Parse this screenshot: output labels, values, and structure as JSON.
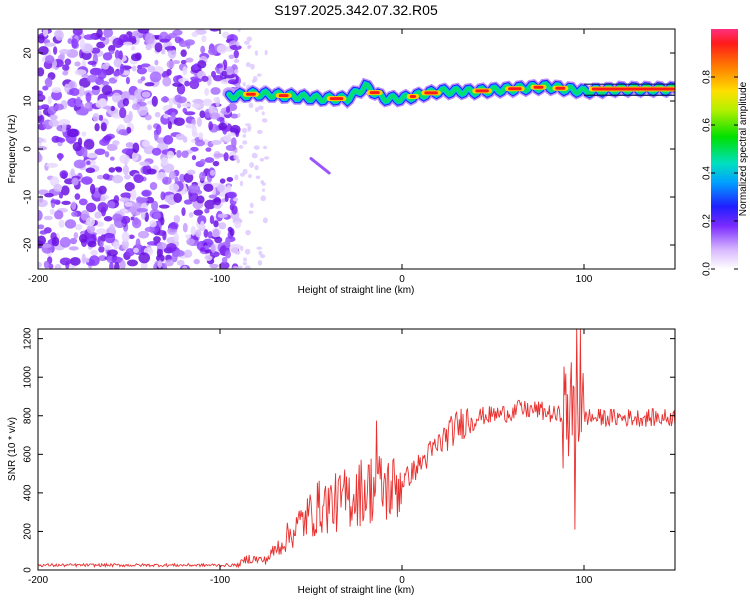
{
  "title": "S197.2025.342.07.32.R05",
  "chart_data": [
    {
      "type": "heatmap",
      "name": "spectrogram",
      "xlabel": "Height of straight line (km)",
      "ylabel": "Frequency (Hz)",
      "xlim": [
        -200,
        150
      ],
      "ylim": [
        -25,
        25
      ],
      "xticks": [
        -200,
        -100,
        0,
        100
      ],
      "yticks": [
        -20,
        -10,
        0,
        10,
        20
      ],
      "colorbar": {
        "label": "Normalized spectral amplitude",
        "range": [
          0.0,
          1.0
        ],
        "ticks": [
          0.0,
          0.2,
          0.4,
          0.6,
          0.8
        ]
      },
      "ridge": {
        "description_points_x": [
          -95,
          -80,
          -60,
          -45,
          -30,
          -20,
          -10,
          0,
          20,
          40,
          60,
          80,
          90,
          100,
          120,
          150
        ],
        "frequency_hz": [
          11,
          11.5,
          11,
          10.5,
          10.5,
          13,
          10.5,
          10.5,
          12,
          12,
          12.5,
          13,
          12.5,
          12,
          12.5,
          12.5
        ]
      },
      "noise_region_x": [
        -200,
        -90
      ],
      "streak": {
        "x": [
          -50,
          -40
        ],
        "y": [
          -2,
          -5
        ]
      }
    },
    {
      "type": "line",
      "name": "snr",
      "xlabel": "Height of straight line (km)",
      "ylabel": "SNR (10 * v/v)",
      "xlim": [
        -200,
        150
      ],
      "ylim": [
        0,
        1250
      ],
      "xticks": [
        -200,
        -100,
        0,
        100
      ],
      "yticks": [
        0,
        200,
        400,
        600,
        800,
        1000,
        1200
      ],
      "color": "#e8312f",
      "envelope_x": [
        -200,
        -90,
        -85,
        -75,
        -65,
        -55,
        -45,
        -35,
        -25,
        -15,
        -5,
        5,
        15,
        25,
        35,
        45,
        55,
        65,
        75,
        85,
        92,
        95,
        98,
        105,
        120,
        150
      ],
      "envelope_y": [
        25,
        25,
        60,
        50,
        150,
        250,
        330,
        350,
        400,
        430,
        420,
        500,
        600,
        700,
        780,
        800,
        810,
        830,
        830,
        800,
        820,
        800,
        800,
        790,
        790,
        790
      ],
      "spikes": [
        {
          "x": -14,
          "y": 775
        },
        {
          "x": 95,
          "y": 210
        },
        {
          "x": 96,
          "y": 1250
        },
        {
          "x": 98,
          "y": 1250
        },
        {
          "x": 64,
          "y": 880
        }
      ]
    }
  ]
}
